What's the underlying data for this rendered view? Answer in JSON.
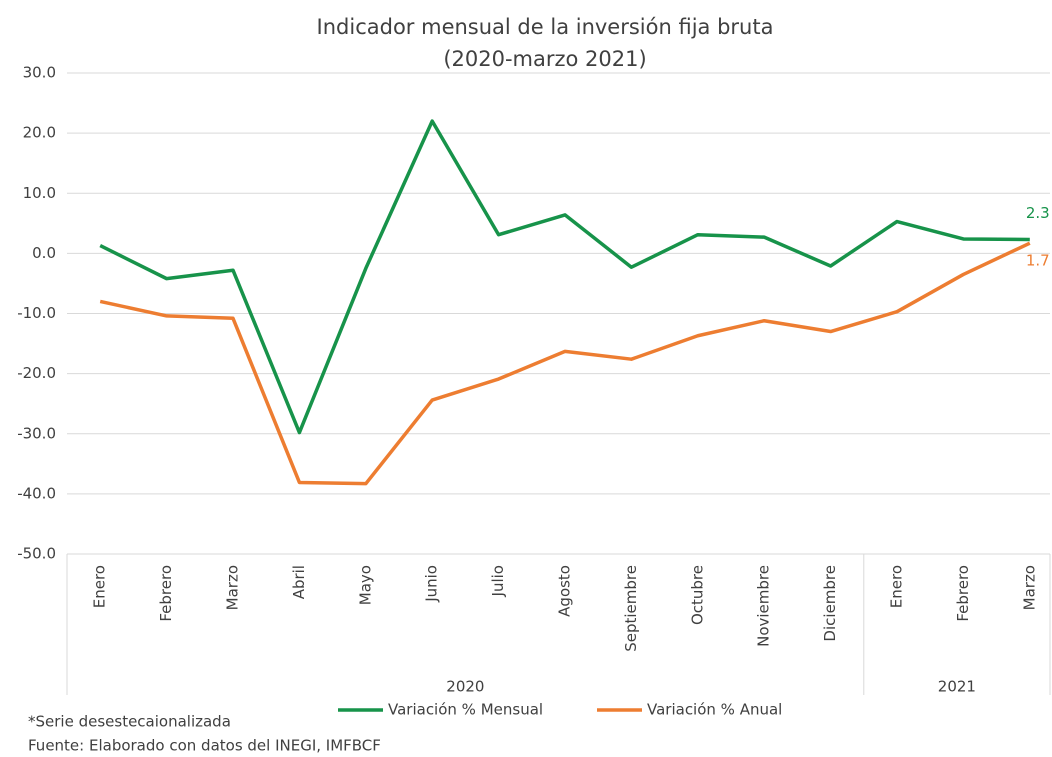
{
  "chart_data": {
    "type": "line",
    "title": "Indicador mensual de la inversión fija bruta",
    "subtitle": "(2020-marzo 2021)",
    "groups": [
      {
        "label": "2020",
        "categories": [
          "Enero",
          "Febrero",
          "Marzo",
          "Abril",
          "Mayo",
          "Junio",
          "Julio",
          "Agosto",
          "Septiembre",
          "Octubre",
          "Noviembre",
          "Diciembre"
        ]
      },
      {
        "label": "2021",
        "categories": [
          "Enero",
          "Febrero",
          "Marzo"
        ]
      }
    ],
    "series": [
      {
        "name": "Variación % Mensual",
        "color": "#17934a",
        "values": [
          1.3,
          -4.2,
          -2.8,
          -29.8,
          -2.5,
          22.0,
          3.1,
          6.4,
          -2.3,
          3.1,
          2.7,
          -2.1,
          5.3,
          2.4,
          2.3
        ]
      },
      {
        "name": "Variación % Anual",
        "color": "#ed7d31",
        "values": [
          -8.0,
          -10.4,
          -10.8,
          -38.1,
          -38.3,
          -24.4,
          -20.9,
          -16.3,
          -17.6,
          -13.7,
          -11.2,
          -13.0,
          -9.7,
          -3.5,
          1.7
        ]
      }
    ],
    "ylim": [
      -50,
      30
    ],
    "yticks": [
      {
        "value": -50,
        "label": "-50.0"
      },
      {
        "value": -40,
        "label": "-40.0"
      },
      {
        "value": -30,
        "label": "-30.0"
      },
      {
        "value": -20,
        "label": "-20.0"
      },
      {
        "value": -10,
        "label": "-10.0"
      },
      {
        "value": 0,
        "label": "0.0"
      },
      {
        "value": 10,
        "label": "10.0"
      },
      {
        "value": 20,
        "label": "20.0"
      },
      {
        "value": 30,
        "label": "30.0"
      }
    ],
    "grid": true,
    "legend": "bottom",
    "notes": [
      "*Serie desestecaionalizada",
      "Fuente:  Elaborado con datos del INEGI, IMFBCF"
    ]
  }
}
